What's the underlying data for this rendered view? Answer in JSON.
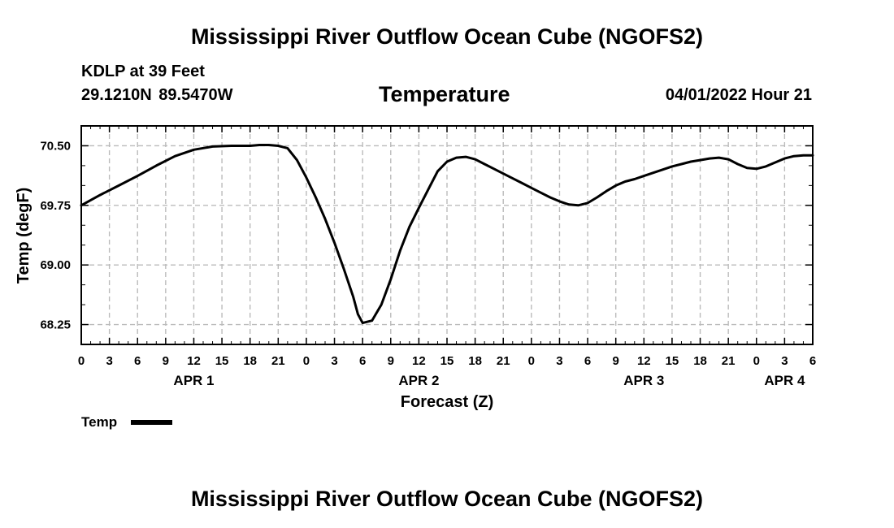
{
  "header": {
    "title": "Mississippi River Outflow Ocean Cube (NGOFS2)",
    "station": "KDLP at 39 Feet",
    "coords": "29.1210N  89.5470W",
    "plot_title": "Temperature",
    "datetime": "04/01/2022 Hour 21"
  },
  "footer": {
    "title": "Mississippi River Outflow Ocean Cube (NGOFS2)"
  },
  "colors": {
    "line": "#000000",
    "grid": "#bbbbbb",
    "axis": "#000000"
  },
  "chart_data": {
    "type": "line",
    "title": "Temperature",
    "xlabel": "Forecast (Z)",
    "ylabel": "Temp (degF)",
    "ylim": [
      68.0,
      70.75
    ],
    "xlim": [
      0,
      78
    ],
    "yticks": [
      68.25,
      69.0,
      69.75,
      70.5
    ],
    "ytick_labels": [
      "68.25",
      "69.00",
      "69.75",
      "70.50"
    ],
    "grid": true,
    "x_tick_labels": [
      "0",
      "3",
      "6",
      "9",
      "12",
      "15",
      "18",
      "21",
      "0",
      "3",
      "6",
      "9",
      "12",
      "15",
      "18",
      "21",
      "0",
      "3",
      "6",
      "9",
      "12",
      "15",
      "18",
      "21",
      "0",
      "3",
      "6"
    ],
    "x_tick_hours": [
      0,
      3,
      6,
      9,
      12,
      15,
      18,
      21,
      24,
      27,
      30,
      33,
      36,
      39,
      42,
      45,
      48,
      51,
      54,
      57,
      60,
      63,
      66,
      69,
      72,
      75,
      78
    ],
    "date_labels": [
      {
        "label": "APR 1",
        "hour": 12
      },
      {
        "label": "APR 2",
        "hour": 36
      },
      {
        "label": "APR 3",
        "hour": 60
      },
      {
        "label": "APR 4",
        "hour": 75
      }
    ],
    "legend": {
      "label": "Temp",
      "position": "bottom-left"
    },
    "series": [
      {
        "name": "Temp",
        "x": [
          0,
          2,
          4,
          6,
          8,
          10,
          12,
          14,
          16,
          18,
          19,
          20,
          21,
          22,
          23,
          24,
          25,
          26,
          27,
          28,
          29,
          29.5,
          30,
          31,
          32,
          33,
          34,
          35,
          36,
          37,
          38,
          39,
          40,
          41,
          42,
          43,
          44,
          45,
          46,
          47,
          48,
          49,
          50,
          51,
          52,
          53,
          54,
          55,
          56,
          57,
          58,
          59,
          60,
          61,
          62,
          63,
          64,
          65,
          66,
          67,
          68,
          69,
          70,
          71,
          72,
          73,
          74,
          75,
          76,
          77,
          78
        ],
        "y": [
          69.75,
          69.88,
          70.0,
          70.12,
          70.25,
          70.37,
          70.45,
          70.49,
          70.5,
          70.5,
          70.51,
          70.51,
          70.5,
          70.47,
          70.32,
          70.1,
          69.85,
          69.58,
          69.28,
          68.95,
          68.6,
          68.38,
          68.27,
          68.3,
          68.5,
          68.82,
          69.18,
          69.48,
          69.72,
          69.95,
          70.18,
          70.3,
          70.35,
          70.36,
          70.33,
          70.27,
          70.21,
          70.15,
          70.09,
          70.03,
          69.97,
          69.91,
          69.85,
          69.8,
          69.76,
          69.75,
          69.78,
          69.85,
          69.93,
          70.0,
          70.05,
          70.08,
          70.12,
          70.16,
          70.2,
          70.24,
          70.27,
          70.3,
          70.32,
          70.34,
          70.35,
          70.33,
          70.27,
          70.22,
          70.21,
          70.24,
          70.29,
          70.34,
          70.37,
          70.38,
          70.38
        ]
      }
    ]
  }
}
